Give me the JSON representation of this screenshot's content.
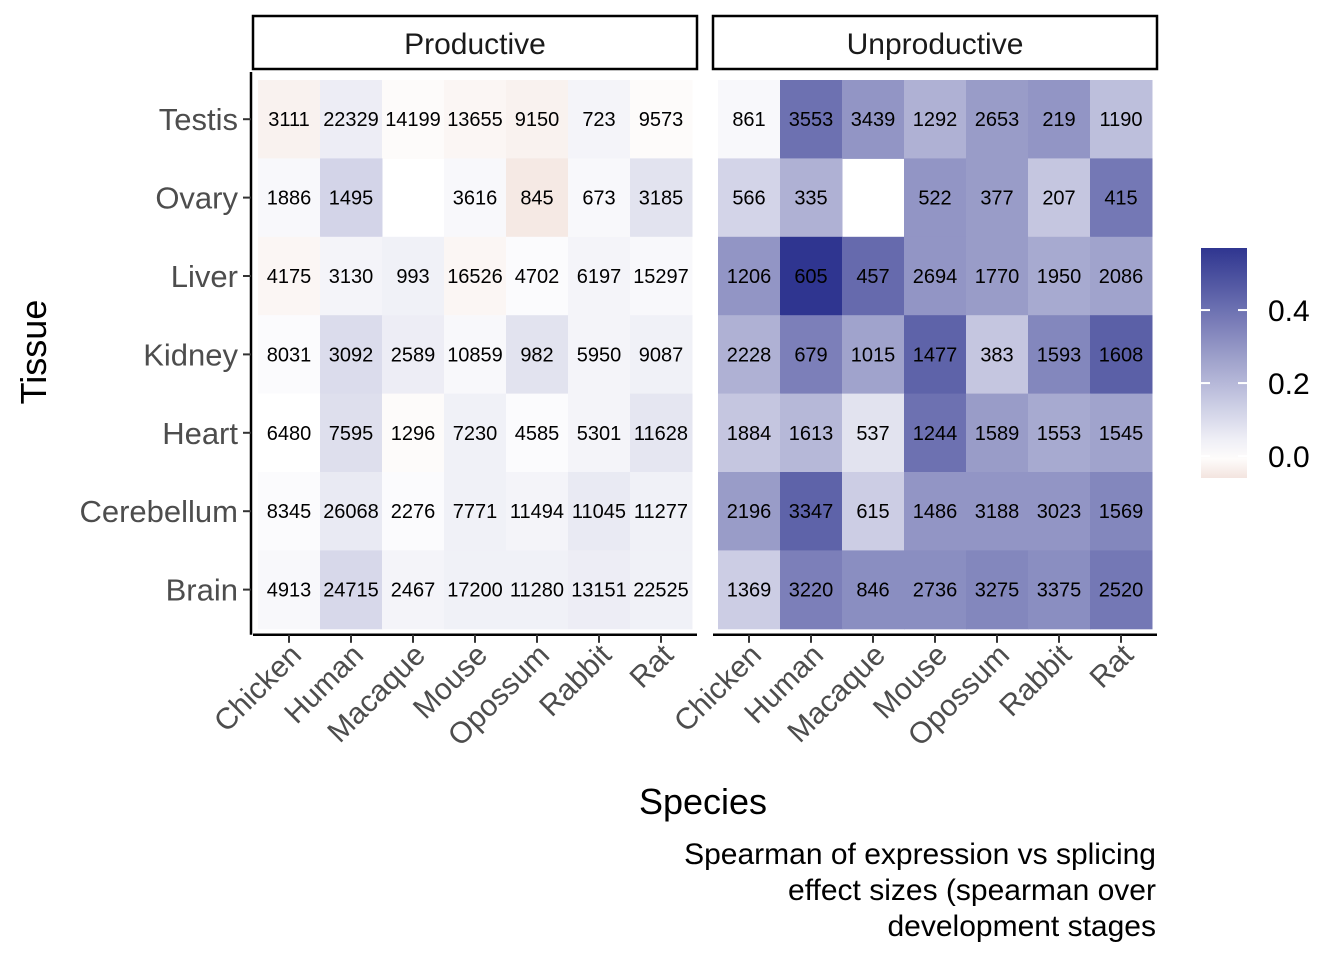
{
  "chart_data": {
    "type": "heatmap",
    "facets": [
      "Productive",
      "Unproductive"
    ],
    "x_categories": [
      "Chicken",
      "Human",
      "Macaque",
      "Mouse",
      "Opossum",
      "Rabbit",
      "Rat"
    ],
    "y_categories": [
      "Testis",
      "Ovary",
      "Liver",
      "Kidney",
      "Heart",
      "Cerebellum",
      "Brain"
    ],
    "xlabel": "Species",
    "ylabel": "Tissue",
    "caption": [
      "Spearman of expression vs splicing",
      "effect sizes (spearman over",
      "development stages"
    ],
    "legend": {
      "position": "right",
      "ticks": [
        "0.0",
        "0.2",
        "0.4"
      ],
      "tick_values": [
        0.0,
        0.2,
        0.4
      ],
      "range": [
        -0.06,
        0.57
      ],
      "colors": {
        "low": "#f3e4df",
        "mid": "#ffffff",
        "high": "#2f3590"
      }
    },
    "cells": {
      "Productive": {
        "labels": [
          [
            "3111",
            "22329",
            "14199",
            "13655",
            "9150",
            "723",
            "9573"
          ],
          [
            "1886",
            "1495",
            "",
            "3616",
            "845",
            "673",
            "3185"
          ],
          [
            "4175",
            "3130",
            "993",
            "16526",
            "4702",
            "6197",
            "15297"
          ],
          [
            "8031",
            "3092",
            "2589",
            "10859",
            "982",
            "5950",
            "9087"
          ],
          [
            "6480",
            "7595",
            "1296",
            "7230",
            "4585",
            "5301",
            "11628"
          ],
          [
            "8345",
            "26068",
            "2276",
            "7771",
            "11494",
            "11045",
            "11277"
          ],
          [
            "4913",
            "24715",
            "2467",
            "17200",
            "11280",
            "13151",
            "22525"
          ]
        ],
        "values": [
          [
            -0.03,
            0.05,
            -0.01,
            -0.02,
            -0.03,
            0.03,
            -0.01
          ],
          [
            0.02,
            0.12,
            null,
            0.02,
            -0.05,
            0.02,
            0.08
          ],
          [
            -0.02,
            0.03,
            0.04,
            -0.02,
            0.01,
            0.03,
            0.02
          ],
          [
            0.01,
            0.1,
            0.05,
            0.02,
            0.08,
            0.03,
            0.04
          ],
          [
            0.0,
            0.09,
            -0.01,
            0.04,
            0.01,
            0.03,
            0.07
          ],
          [
            0.01,
            0.06,
            0.01,
            0.04,
            0.03,
            0.06,
            0.04
          ],
          [
            0.02,
            0.11,
            0.03,
            0.04,
            0.04,
            0.05,
            0.04
          ]
        ]
      },
      "Unproductive": {
        "labels": [
          [
            "861",
            "3553",
            "3439",
            "1292",
            "2653",
            "219",
            "1190"
          ],
          [
            "566",
            "335",
            "",
            "522",
            "377",
            "207",
            "415"
          ],
          [
            "1206",
            "605",
            "457",
            "2694",
            "1770",
            "1950",
            "2086"
          ],
          [
            "2228",
            "679",
            "1015",
            "1477",
            "383",
            "1593",
            "1608"
          ],
          [
            "1884",
            "1613",
            "537",
            "1244",
            "1589",
            "1553",
            "1545"
          ],
          [
            "2196",
            "3347",
            "615",
            "1486",
            "3188",
            "3023",
            "1569"
          ],
          [
            "1369",
            "3220",
            "846",
            "2736",
            "3275",
            "3375",
            "2520"
          ]
        ],
        "values": [
          [
            0.02,
            0.4,
            0.3,
            0.22,
            0.28,
            0.3,
            0.18
          ],
          [
            0.12,
            0.22,
            null,
            0.3,
            0.28,
            0.16,
            0.38
          ],
          [
            0.3,
            0.57,
            0.42,
            0.3,
            0.28,
            0.24,
            0.26
          ],
          [
            0.22,
            0.36,
            0.26,
            0.44,
            0.16,
            0.34,
            0.45
          ],
          [
            0.16,
            0.2,
            0.08,
            0.4,
            0.28,
            0.24,
            0.26
          ],
          [
            0.28,
            0.44,
            0.14,
            0.3,
            0.3,
            0.3,
            0.34
          ],
          [
            0.14,
            0.36,
            0.32,
            0.32,
            0.34,
            0.32,
            0.38
          ]
        ]
      }
    }
  }
}
